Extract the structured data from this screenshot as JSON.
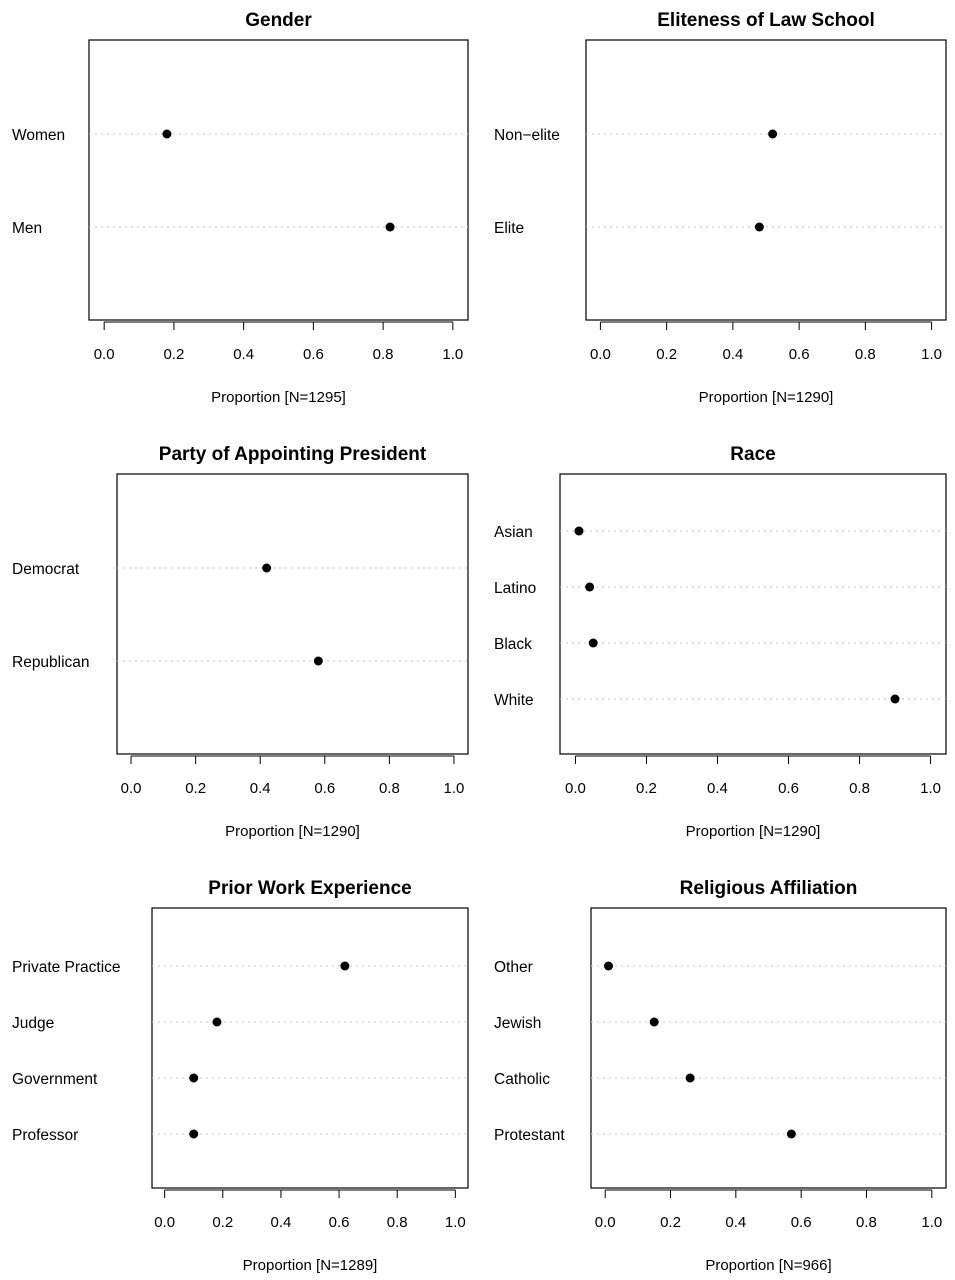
{
  "chart_data": [
    {
      "type": "scatter",
      "title": "Gender",
      "xlabel": "Proportion [N=1295]",
      "xlim": [
        0,
        1
      ],
      "ticks": [
        "0.0",
        "0.2",
        "0.4",
        "0.6",
        "0.8",
        "1.0"
      ],
      "categories": [
        "Women",
        "Men"
      ],
      "values": [
        0.18,
        0.82
      ]
    },
    {
      "type": "scatter",
      "title": "Eliteness of Law School",
      "xlabel": "Proportion [N=1290]",
      "xlim": [
        0,
        1
      ],
      "ticks": [
        "0.0",
        "0.2",
        "0.4",
        "0.6",
        "0.8",
        "1.0"
      ],
      "categories": [
        "Non−elite",
        "Elite"
      ],
      "values": [
        0.52,
        0.48
      ]
    },
    {
      "type": "scatter",
      "title": "Party of Appointing President",
      "xlabel": "Proportion [N=1290]",
      "xlim": [
        0,
        1
      ],
      "ticks": [
        "0.0",
        "0.2",
        "0.4",
        "0.6",
        "0.8",
        "1.0"
      ],
      "categories": [
        "Democrat",
        "Republican"
      ],
      "values": [
        0.42,
        0.58
      ]
    },
    {
      "type": "scatter",
      "title": "Race",
      "xlabel": "Proportion [N=1290]",
      "xlim": [
        0,
        1
      ],
      "ticks": [
        "0.0",
        "0.2",
        "0.4",
        "0.6",
        "0.8",
        "1.0"
      ],
      "categories": [
        "Asian",
        "Latino",
        "Black",
        "White"
      ],
      "values": [
        0.01,
        0.04,
        0.05,
        0.9
      ]
    },
    {
      "type": "scatter",
      "title": "Prior Work Experience",
      "xlabel": "Proportion [N=1289]",
      "xlim": [
        0,
        1
      ],
      "ticks": [
        "0.0",
        "0.2",
        "0.4",
        "0.6",
        "0.8",
        "1.0"
      ],
      "categories": [
        "Private Practice",
        "Judge",
        "Government",
        "Professor"
      ],
      "values": [
        0.62,
        0.18,
        0.1,
        0.1
      ]
    },
    {
      "type": "scatter",
      "title": "Religious Affiliation",
      "xlabel": "Proportion [N=966]",
      "xlim": [
        0,
        1
      ],
      "ticks": [
        "0.0",
        "0.2",
        "0.4",
        "0.6",
        "0.8",
        "1.0"
      ],
      "categories": [
        "Other",
        "Jewish",
        "Catholic",
        "Protestant"
      ],
      "values": [
        0.01,
        0.15,
        0.26,
        0.57
      ]
    }
  ]
}
